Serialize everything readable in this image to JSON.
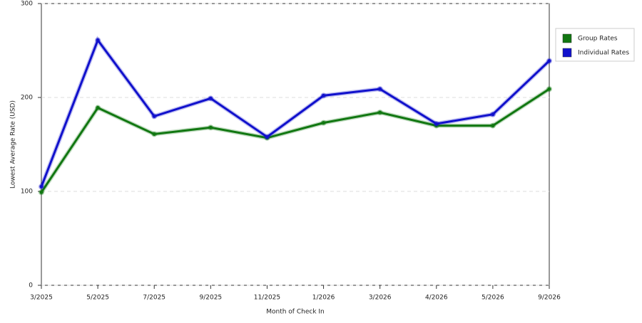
{
  "chart_data": {
    "type": "line",
    "x_label": "Month of Check In",
    "y_label": "Lowest Average Rate (USD)",
    "categories": [
      "3/2025",
      "5/2025",
      "7/2025",
      "9/2025",
      "11/2025",
      "1/2026",
      "3/2026",
      "4/2026",
      "5/2026",
      "9/2026"
    ],
    "series": [
      {
        "name": "Group Rates",
        "color": "#117711",
        "values": [
          99,
          189,
          161,
          168,
          157,
          173,
          184,
          170,
          170,
          209
        ]
      },
      {
        "name": "Individual Rates",
        "color": "#1111cc",
        "values": [
          105,
          261,
          180,
          199,
          158,
          202,
          209,
          172,
          182,
          239
        ]
      }
    ],
    "ylim": [
      0,
      300
    ],
    "yticks": [
      0,
      100,
      200,
      300
    ],
    "grid": true
  }
}
